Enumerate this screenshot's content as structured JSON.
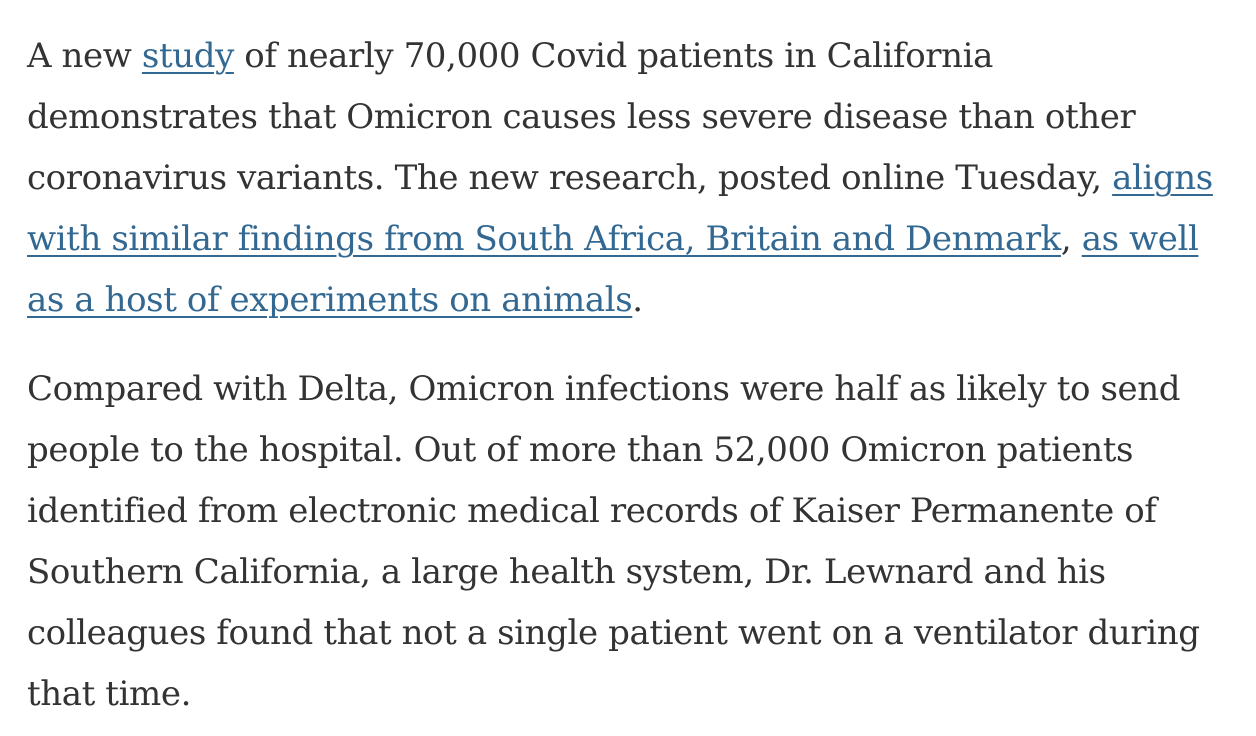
{
  "article": {
    "paragraph1": {
      "lead": "A new ",
      "link_study": "study",
      "text_after_study": " of nearly 70,000 Covid patients in California demonstrates that Omicron causes less severe disease than other coronavirus variants. The new research, posted online Tuesday, ",
      "link_similar_findings": "aligns with similar findings from South Africa, Britain and Denmark",
      "text_comma": ", ",
      "link_animal_experiments": "as well as a host of experiments on animals",
      "text_end": "."
    },
    "paragraph2": {
      "text": "Compared with Delta, Omicron infections were half as likely to send people to the hospital. Out of more than 52,000 Omicron patients identified from electronic medical records of Kaiser Permanente of Southern California, a large health system, Dr. Lewnard and his colleagues found that not a single patient went on a ventilator during that time."
    },
    "colors": {
      "text": "#333333",
      "link": "#326891"
    }
  }
}
